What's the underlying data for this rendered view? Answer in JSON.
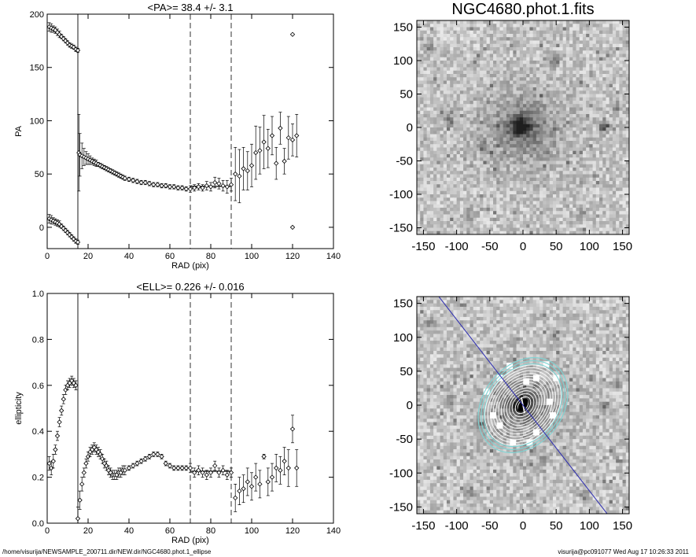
{
  "footer": {
    "path": "/home/visurija/NEWSAMPLE_200711.dir/NEW.dir/NGC4680.phot.1_ellipse",
    "user_date": "visurija@pc091077  Wed Aug 17 10:26:33 2011"
  },
  "chart_data": [
    {
      "type": "scatter",
      "title": "<PA>=  38.4 +/-   3.1",
      "xlabel": "RAD (pix)",
      "ylabel": "PA",
      "xlim": [
        0,
        140
      ],
      "ylim": [
        -20,
        200
      ],
      "xticks": [
        0,
        20,
        40,
        60,
        80,
        100,
        120,
        140
      ],
      "yticks": [
        0,
        50,
        100,
        150,
        200
      ],
      "vlines": [
        15,
        70,
        90
      ],
      "vline_styles": [
        "solid",
        "dashed",
        "dashed"
      ],
      "mean_segment": {
        "x": [
          70,
          90
        ],
        "y": 38.4
      },
      "series": [
        {
          "x": [
            1,
            2,
            3,
            4,
            5,
            6,
            7,
            8,
            9,
            10,
            11,
            12,
            13,
            14,
            15
          ],
          "y": [
            188,
            187,
            186,
            185,
            183,
            181,
            179,
            177,
            175,
            173,
            171,
            170,
            169,
            167,
            166
          ],
          "err": [
            4,
            4,
            3,
            3,
            3,
            3,
            2,
            2,
            2,
            2,
            2,
            2,
            2,
            2,
            2
          ]
        },
        {
          "x": [
            1,
            2,
            3,
            4,
            5,
            6,
            7,
            8,
            9,
            10,
            11,
            12,
            13,
            14,
            15
          ],
          "y": [
            8,
            7,
            6,
            5,
            4,
            3,
            1,
            -1,
            -3,
            -5,
            -7,
            -9,
            -11,
            -13,
            -14
          ],
          "err": [
            4,
            4,
            3,
            3,
            3,
            3,
            2,
            2,
            2,
            2,
            2,
            2,
            2,
            2,
            2
          ]
        },
        {
          "x": [
            15.5,
            16,
            17,
            18,
            19,
            20,
            21,
            22,
            23,
            24,
            25,
            26,
            27,
            28,
            29,
            30,
            31,
            32,
            33,
            34,
            35,
            36,
            37,
            38,
            40,
            42,
            44,
            46,
            48,
            50,
            52,
            54,
            56,
            58,
            60,
            62,
            64,
            66,
            68
          ],
          "y": [
            70,
            68,
            67,
            66,
            65,
            64,
            63,
            62,
            61,
            60,
            59,
            58,
            57,
            56,
            55,
            54,
            53,
            52,
            51,
            50,
            49,
            48,
            47,
            46,
            45,
            44,
            43,
            42,
            42,
            41,
            40,
            40,
            39,
            39,
            38,
            38,
            37,
            37,
            36
          ],
          "err": [
            36,
            20,
            12,
            8,
            6,
            5,
            4,
            3,
            3,
            3,
            2,
            2,
            2,
            2,
            2,
            2,
            2,
            2,
            2,
            2,
            2,
            2,
            2,
            2,
            2,
            2,
            2,
            2,
            2,
            2,
            2,
            2,
            2,
            2,
            2,
            2,
            2,
            2,
            2
          ]
        },
        {
          "x": [
            70,
            72,
            74,
            76,
            78,
            80,
            82,
            84,
            86,
            88,
            90,
            92,
            94,
            96,
            98,
            100,
            102,
            104,
            106,
            108,
            110,
            112,
            114,
            116,
            118,
            120,
            122
          ],
          "y": [
            36,
            37,
            38,
            37,
            39,
            38,
            42,
            41,
            39,
            38,
            40,
            50,
            48,
            55,
            53,
            58,
            70,
            72,
            80,
            74,
            86,
            60,
            93,
            62,
            84,
            82,
            86
          ],
          "err": [
            3,
            3,
            3,
            3,
            4,
            4,
            5,
            5,
            5,
            6,
            6,
            25,
            25,
            20,
            18,
            20,
            25,
            22,
            25,
            18,
            18,
            15,
            15,
            12,
            20,
            15,
            20
          ]
        },
        {
          "x": [
            120,
            120
          ],
          "y": [
            181,
            0
          ],
          "err": [
            0,
            0
          ]
        }
      ]
    },
    {
      "type": "scatter",
      "title": "<ELL>= 0.226 +/-  0.016",
      "xlabel": "RAD (pix)",
      "ylabel": "ellipticity",
      "xlim": [
        0,
        140
      ],
      "ylim": [
        0.0,
        1.0
      ],
      "xticks": [
        0,
        20,
        40,
        60,
        80,
        100,
        120,
        140
      ],
      "yticks": [
        0.0,
        0.2,
        0.4,
        0.6,
        0.8,
        1.0
      ],
      "vlines": [
        15,
        70,
        90
      ],
      "vline_styles": [
        "solid",
        "dashed",
        "dashed"
      ],
      "mean_segment": {
        "x": [
          70,
          90
        ],
        "y": 0.226
      },
      "series": [
        {
          "x": [
            1,
            2,
            3,
            4,
            5,
            6,
            7,
            8,
            9,
            10,
            11,
            12,
            13,
            14
          ],
          "y": [
            0.26,
            0.24,
            0.27,
            0.32,
            0.38,
            0.44,
            0.49,
            0.54,
            0.58,
            0.6,
            0.61,
            0.62,
            0.61,
            0.6
          ],
          "err": [
            0.03,
            0.03,
            0.03,
            0.02,
            0.02,
            0.02,
            0.02,
            0.02,
            0.02,
            0.02,
            0.02,
            0.02,
            0.02,
            0.02
          ]
        },
        {
          "x": [
            15,
            16,
            17,
            18,
            19,
            20,
            21,
            22,
            23,
            24,
            25,
            26,
            27,
            28,
            29,
            30,
            31,
            32,
            33,
            34,
            35,
            36,
            37,
            38,
            40,
            42,
            44,
            46,
            48,
            50,
            52,
            54,
            56,
            58,
            60,
            62,
            64,
            66,
            68
          ],
          "y": [
            0.02,
            0.1,
            0.17,
            0.22,
            0.26,
            0.29,
            0.31,
            0.32,
            0.33,
            0.32,
            0.31,
            0.3,
            0.28,
            0.26,
            0.25,
            0.23,
            0.22,
            0.21,
            0.21,
            0.21,
            0.22,
            0.22,
            0.23,
            0.23,
            0.24,
            0.25,
            0.26,
            0.27,
            0.28,
            0.29,
            0.3,
            0.3,
            0.29,
            0.26,
            0.25,
            0.24,
            0.24,
            0.24,
            0.24
          ],
          "err": [
            0.05,
            0.04,
            0.03,
            0.02,
            0.02,
            0.02,
            0.02,
            0.02,
            0.02,
            0.02,
            0.02,
            0.02,
            0.02,
            0.02,
            0.02,
            0.02,
            0.02,
            0.02,
            0.02,
            0.02,
            0.02,
            0.02,
            0.02,
            0.02,
            0.01,
            0.01,
            0.01,
            0.01,
            0.01,
            0.01,
            0.01,
            0.01,
            0.01,
            0.01,
            0.01,
            0.01,
            0.01,
            0.01,
            0.01
          ]
        },
        {
          "x": [
            70,
            72,
            74,
            76,
            78,
            80,
            82,
            84,
            86,
            88,
            90,
            92,
            94,
            96,
            98,
            100,
            102,
            104,
            106,
            108,
            110,
            112,
            114,
            116,
            118,
            120,
            122
          ],
          "y": [
            0.24,
            0.22,
            0.23,
            0.22,
            0.21,
            0.22,
            0.25,
            0.22,
            0.23,
            0.21,
            0.22,
            0.11,
            0.14,
            0.15,
            0.18,
            0.16,
            0.2,
            0.17,
            0.29,
            0.18,
            0.2,
            0.24,
            0.23,
            0.27,
            0.24,
            0.41,
            0.24
          ],
          "err": [
            0.02,
            0.02,
            0.02,
            0.02,
            0.02,
            0.02,
            0.02,
            0.02,
            0.02,
            0.02,
            0.02,
            0.06,
            0.06,
            0.06,
            0.06,
            0.06,
            0.06,
            0.06,
            0.01,
            0.06,
            0.06,
            0.06,
            0.06,
            0.06,
            0.08,
            0.06,
            0.08
          ]
        }
      ]
    },
    {
      "type": "heatmap",
      "title": "NGC4680.phot.1.fits",
      "xlim": [
        -160,
        160
      ],
      "ylim": [
        -160,
        160
      ],
      "xticks": [
        -150,
        -100,
        -50,
        0,
        50,
        100,
        150
      ],
      "yticks": [
        -150,
        -100,
        -50,
        0,
        50,
        100,
        150
      ],
      "colormap": "inverted-grayscale"
    },
    {
      "type": "heatmap",
      "title": "",
      "xlim": [
        -160,
        160
      ],
      "ylim": [
        -160,
        160
      ],
      "xticks": [
        -150,
        -100,
        -50,
        0,
        50,
        100,
        150
      ],
      "yticks": [
        -150,
        -100,
        -50,
        0,
        50,
        100,
        150
      ],
      "colormap": "inverted-grayscale",
      "overlay_colors": {
        "isophotes": "#ffffff",
        "outer_isophotes": "#7fd4d4",
        "pa_line": "#2a2ab0"
      }
    }
  ]
}
